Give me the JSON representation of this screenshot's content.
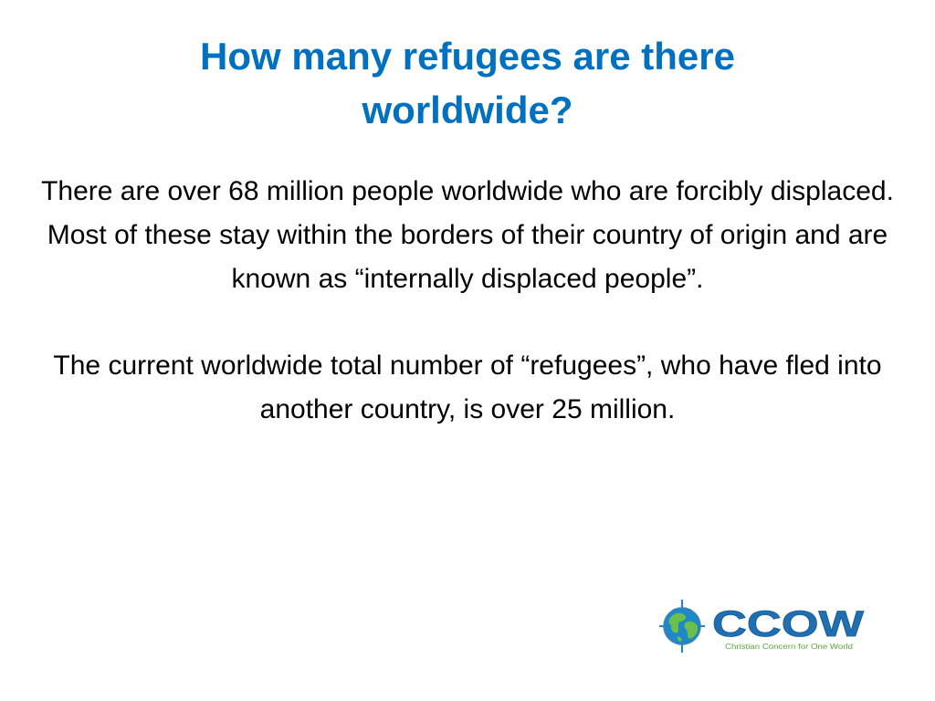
{
  "slide": {
    "title": "How many refugees are there worldwide?",
    "paragraphs": [
      "There are over 68 million people worldwide who are forcibly displaced. Most of these stay within the borders of their country of origin and are known as “internally displaced people”.",
      "The current worldwide total number of “refugees”, who have fled into another country, is over 25 million."
    ]
  },
  "logo": {
    "wordmark": "CCOW",
    "tagline": "Christian Concern for One World",
    "colors": {
      "globe_ocean": "#1e88c8",
      "globe_land": "#6cc04a",
      "wordmark": "#1f6fb2",
      "tagline": "#5aa83c"
    }
  },
  "colors": {
    "title": "#0070c0",
    "body_text": "#000000",
    "background": "#ffffff"
  }
}
